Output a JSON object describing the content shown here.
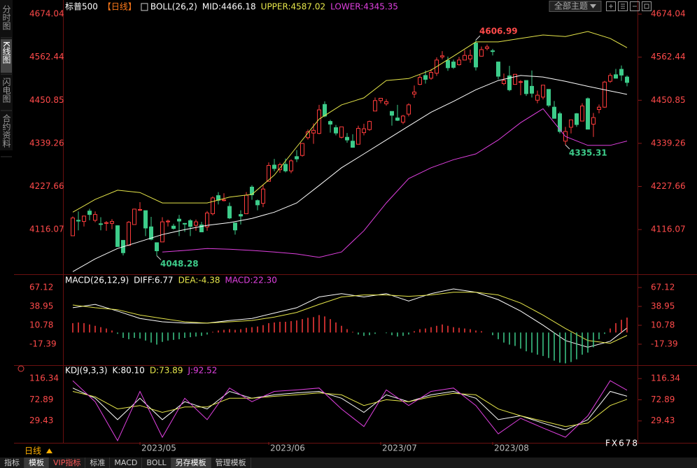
{
  "ui": {
    "sidebar_tabs": [
      "分时图",
      "K线图",
      "闪电图",
      "合约资料"
    ],
    "active_tab": 1,
    "theme_dropdown": "全部主题",
    "period_button": "日线",
    "bottom_tabs": [
      "指标",
      "模板",
      "VIP指标",
      "标准",
      "MACD",
      "BOLL",
      "另存模板",
      "管理模板"
    ],
    "watermark": "FX678"
  },
  "chart_data": [
    {
      "type": "candlestick",
      "title": "标普500",
      "period": "【日线】",
      "indicator": "BOLL(26,2)",
      "up_color": "#ff3b3b",
      "down_color": "#3dcc8a",
      "xlim": [
        -1.5,
        100.5
      ],
      "ylim": [
        4004,
        4696
      ],
      "yticks": [
        4674.04,
        4562.44,
        4450.85,
        4339.26,
        4227.66,
        4116.07
      ],
      "candles": [
        [
          4100,
          4150,
          4099,
          4146
        ],
        [
          4140,
          4163,
          4114,
          4138
        ],
        [
          4137,
          4152,
          4124,
          4151
        ],
        [
          4164,
          4170,
          4140,
          4155
        ],
        [
          4140,
          4163,
          4135,
          4155
        ],
        [
          4131,
          4148,
          4114,
          4130
        ],
        [
          4132,
          4138,
          4113,
          4134
        ],
        [
          4132,
          4143,
          4117,
          4137
        ],
        [
          4126,
          4127,
          4071,
          4072
        ],
        [
          4088,
          4089,
          4049,
          4056
        ],
        [
          4075,
          4138,
          4075,
          4135
        ],
        [
          4129,
          4170,
          4128,
          4169
        ],
        [
          4166,
          4187,
          4164,
          4168
        ],
        [
          4165,
          4165,
          4099,
          4120
        ],
        [
          4123,
          4149,
          4088,
          4091
        ],
        [
          4082,
          4083,
          4048.28,
          4061
        ],
        [
          4084,
          4148,
          4084,
          4136
        ],
        [
          4136,
          4142,
          4124,
          4138
        ],
        [
          4125,
          4131,
          4116,
          4119
        ],
        [
          4143,
          4154,
          4099,
          4138
        ],
        [
          4132,
          4133,
          4110,
          4131
        ],
        [
          4139,
          4143,
          4099,
          4124
        ],
        [
          4127,
          4142,
          4113,
          4136
        ],
        [
          4128,
          4136,
          4109,
          4110
        ],
        [
          4123,
          4164,
          4113,
          4159
        ],
        [
          4157,
          4202,
          4153,
          4198
        ],
        [
          4204,
          4213,
          4181,
          4192
        ],
        [
          4191,
          4210,
          4189,
          4193
        ],
        [
          4176,
          4186,
          4143,
          4146
        ],
        [
          4133,
          4133,
          4103,
          4115
        ],
        [
          4155,
          4166,
          4129,
          4151
        ],
        [
          4157,
          4213,
          4157,
          4205
        ],
        [
          4226,
          4231,
          4193,
          4206
        ],
        [
          4191,
          4194,
          4166,
          4180
        ],
        [
          4184,
          4232,
          4174,
          4221
        ],
        [
          4241,
          4290,
          4241,
          4282
        ],
        [
          4283,
          4299,
          4267,
          4274
        ],
        [
          4271,
          4289,
          4263,
          4284
        ],
        [
          4285,
          4300,
          4264,
          4268
        ],
        [
          4268,
          4298,
          4262,
          4294
        ],
        [
          4305,
          4322,
          4291,
          4299
        ],
        [
          4308,
          4340,
          4305,
          4339
        ],
        [
          4354,
          4375,
          4349,
          4369
        ],
        [
          4366,
          4391,
          4338,
          4373
        ],
        [
          4365,
          4439,
          4363,
          4426
        ],
        [
          4440,
          4448,
          4407,
          4410
        ],
        [
          4396,
          4400,
          4367,
          4389
        ],
        [
          4380,
          4387,
          4360,
          4366
        ],
        [
          4355,
          4382,
          4352,
          4382
        ],
        [
          4355,
          4366,
          4341,
          4348
        ],
        [
          4345,
          4363,
          4328,
          4329
        ],
        [
          4337,
          4385,
          4337,
          4378
        ],
        [
          4367,
          4390,
          4360,
          4377
        ],
        [
          4375,
          4398,
          4372,
          4396
        ],
        [
          4423,
          4458,
          4423,
          4450
        ],
        [
          4450,
          4456,
          4443,
          4456
        ],
        [
          4442,
          4454,
          4437,
          4447
        ],
        [
          4422,
          4422,
          4385,
          4412
        ],
        [
          4405,
          4439,
          4397,
          4399
        ],
        [
          4394,
          4413,
          4389,
          4410
        ],
        [
          4415,
          4443,
          4409,
          4439
        ],
        [
          4467,
          4489,
          4457,
          4472
        ],
        [
          4492,
          4517,
          4490,
          4510
        ],
        [
          4515,
          4528,
          4494,
          4505
        ],
        [
          4508,
          4532,
          4504,
          4523
        ],
        [
          4521,
          4562,
          4514,
          4555
        ],
        [
          4563,
          4578,
          4557,
          4566
        ],
        [
          4554,
          4564,
          4527,
          4535
        ],
        [
          4550,
          4556,
          4532,
          4536
        ],
        [
          4543,
          4563,
          4541,
          4555
        ],
        [
          4555,
          4581,
          4554,
          4567
        ],
        [
          4558,
          4582,
          4548,
          4567
        ],
        [
          4599,
          4606.99,
          4528,
          4537
        ],
        [
          4565,
          4590,
          4564,
          4582
        ],
        [
          4585,
          4595,
          4580,
          4589
        ],
        [
          4579,
          4584,
          4567,
          4577
        ],
        [
          4550,
          4551,
          4505,
          4513
        ],
        [
          4494,
          4520,
          4490,
          4502
        ],
        [
          4514,
          4540,
          4474,
          4478
        ],
        [
          4492,
          4519,
          4491,
          4518
        ],
        [
          4499,
          4503,
          4464,
          4499
        ],
        [
          4502,
          4502,
          4462,
          4468
        ],
        [
          4487,
          4528,
          4458,
          4469
        ],
        [
          4451,
          4476,
          4443,
          4464
        ],
        [
          4459,
          4490,
          4453,
          4490
        ],
        [
          4479,
          4479,
          4433,
          4438
        ],
        [
          4433,
          4449,
          4404,
          4404
        ],
        [
          4416,
          4421,
          4365,
          4370
        ],
        [
          4345,
          4382,
          4335.31,
          4370
        ],
        [
          4381,
          4401,
          4365,
          4400
        ],
        [
          4416,
          4418,
          4382,
          4388
        ],
        [
          4397,
          4443,
          4397,
          4436
        ],
        [
          4455,
          4458,
          4376,
          4376
        ],
        [
          4389,
          4418,
          4356,
          4406
        ],
        [
          4427,
          4440,
          4417,
          4433
        ],
        [
          4433,
          4501,
          4431,
          4498
        ],
        [
          4500,
          4521,
          4496,
          4515
        ],
        [
          4517,
          4532,
          4507,
          4508
        ],
        [
          4531,
          4541,
          4501,
          4516
        ],
        [
          4511,
          4515,
          4487,
          4497
        ]
      ],
      "series": [
        {
          "name": "MID:4466.18",
          "type": "line",
          "color": "#ffffff",
          "x": [
            0,
            4,
            8,
            12,
            16,
            20,
            24,
            28,
            32,
            36,
            40,
            44,
            48,
            52,
            56,
            60,
            64,
            68,
            72,
            76,
            80,
            84,
            88,
            92,
            96,
            99
          ],
          "values": [
            4007,
            4040,
            4067,
            4085,
            4103,
            4116,
            4127,
            4134,
            4145,
            4161,
            4185,
            4230,
            4276,
            4312,
            4348,
            4384,
            4420,
            4448,
            4478,
            4502,
            4515,
            4511,
            4500,
            4487,
            4475,
            4466.18
          ]
        },
        {
          "name": "UPPER:4587.02",
          "type": "line",
          "color": "#e6e64a",
          "x": [
            0,
            4,
            8,
            12,
            16,
            20,
            24,
            28,
            32,
            36,
            40,
            44,
            48,
            52,
            56,
            60,
            64,
            68,
            72,
            76,
            80,
            84,
            88,
            92,
            96,
            99
          ],
          "values": [
            4161,
            4194,
            4218,
            4212,
            4185,
            4185,
            4185,
            4200,
            4207,
            4257,
            4330,
            4402,
            4439,
            4457,
            4502,
            4507,
            4529,
            4565,
            4602,
            4602,
            4611,
            4620,
            4616,
            4629,
            4611,
            4587.02
          ]
        },
        {
          "name": "LOWER:4345.35",
          "type": "line",
          "color": "#e040e0",
          "x": [
            16,
            20,
            24,
            28,
            32,
            36,
            40,
            44,
            48,
            52,
            56,
            60,
            64,
            68,
            72,
            76,
            80,
            84,
            88,
            92,
            96,
            99
          ],
          "values": [
            4058,
            4062,
            4067,
            4065,
            4062,
            4058,
            4053,
            4044,
            4058,
            4113,
            4185,
            4248,
            4276,
            4297,
            4312,
            4348,
            4393,
            4429,
            4357,
            4334,
            4334,
            4345.35
          ]
        }
      ]
    },
    {
      "type": "indicator",
      "title": "MACD(26,12,9)",
      "xlim": [
        -1.5,
        100.5
      ],
      "ylim": [
        -46.6,
        83.8
      ],
      "yticks": [
        67.12,
        38.95,
        10.78,
        -17.39
      ],
      "series": [
        {
          "name": "DIFF:6.77",
          "type": "line",
          "color": "#ffffff",
          "x": [
            0,
            4,
            8,
            12,
            16,
            20,
            24,
            28,
            32,
            36,
            40,
            44,
            48,
            52,
            56,
            60,
            64,
            68,
            72,
            76,
            80,
            84,
            88,
            92,
            96,
            99
          ],
          "values": [
            37,
            42,
            32,
            21,
            16,
            14,
            14,
            18,
            21,
            29,
            37,
            53,
            58,
            53,
            58,
            47,
            58,
            65,
            60,
            49,
            32,
            11,
            -12,
            -22,
            -13,
            6.77
          ]
        },
        {
          "name": "DEA:-4.38",
          "type": "line",
          "color": "#e6e64a",
          "x": [
            0,
            4,
            8,
            12,
            16,
            20,
            24,
            28,
            32,
            36,
            40,
            44,
            48,
            52,
            56,
            60,
            64,
            68,
            72,
            76,
            80,
            84,
            88,
            92,
            96,
            99
          ],
          "values": [
            41,
            37,
            34,
            26,
            21,
            16,
            14,
            16,
            18,
            23,
            30,
            42,
            53,
            56,
            56,
            54,
            56,
            60,
            60,
            56,
            44,
            26,
            6,
            -12,
            -16,
            -4.38
          ]
        },
        {
          "name": "MACD:22.30",
          "type": "bar",
          "color": "#ff3b3b",
          "negative_color": "#3dcc8a",
          "label_color": "#e040e0",
          "values": [
            14,
            15,
            14,
            12,
            10,
            8,
            6,
            3,
            -2,
            -8,
            -10,
            -8,
            -9,
            -12,
            -15,
            -18,
            -14,
            -12,
            -11,
            -10,
            -8,
            -7,
            -6,
            -5,
            -3,
            1,
            3,
            4,
            5,
            4,
            5,
            7,
            8,
            9,
            11,
            14,
            15,
            16,
            16,
            17,
            18,
            20,
            22,
            23,
            26,
            24,
            20,
            15,
            10,
            5,
            1,
            -3,
            -5,
            -4,
            -2,
            0,
            -1,
            -4,
            -6,
            -5,
            -3,
            2,
            5,
            6,
            8,
            10,
            12,
            10,
            8,
            7,
            6,
            5,
            3,
            2,
            0,
            -4,
            -10,
            -15,
            -18,
            -20,
            -24,
            -28,
            -30,
            -33,
            -35,
            -38,
            -42,
            -45,
            -46,
            -44,
            -40,
            -33,
            -30,
            -22,
            -10,
            -2,
            6,
            14,
            19,
            22.3
          ]
        }
      ]
    },
    {
      "type": "indicator",
      "title": "KDJ(9,3,3)",
      "xlim": [
        -1.5,
        100.5
      ],
      "ylim": [
        -14,
        141
      ],
      "yticks": [
        116.34,
        72.89,
        29.43
      ],
      "xticks": [
        {
          "value": 12,
          "label": "2023/05"
        },
        {
          "value": 35,
          "label": "2023/06"
        },
        {
          "value": 55,
          "label": "2023/07"
        },
        {
          "value": 75,
          "label": "2023/08"
        }
      ],
      "series": [
        {
          "name": "K:80.10",
          "type": "line",
          "color": "#ffffff",
          "x": [
            0,
            4,
            8,
            12,
            16,
            20,
            24,
            28,
            32,
            36,
            40,
            44,
            48,
            52,
            56,
            60,
            64,
            68,
            72,
            76,
            80,
            84,
            88,
            92,
            96,
            99
          ],
          "values": [
            97,
            76,
            32,
            76,
            32,
            69,
            54,
            90,
            76,
            83,
            87,
            90,
            76,
            47,
            83,
            69,
            83,
            90,
            76,
            32,
            40,
            25,
            11,
            32,
            90,
            80.1
          ]
        },
        {
          "name": "D:73.89",
          "type": "line",
          "color": "#e6e64a",
          "x": [
            0,
            4,
            8,
            12,
            16,
            20,
            24,
            28,
            32,
            36,
            40,
            44,
            48,
            52,
            56,
            60,
            64,
            68,
            72,
            76,
            80,
            84,
            88,
            92,
            96,
            99
          ],
          "values": [
            90,
            79,
            54,
            61,
            47,
            58,
            58,
            76,
            76,
            80,
            83,
            87,
            83,
            61,
            73,
            69,
            79,
            86,
            83,
            54,
            40,
            29,
            18,
            25,
            61,
            73.89
          ]
        },
        {
          "name": "J:92.52",
          "type": "line",
          "color": "#e040e0",
          "x": [
            0,
            4,
            8,
            12,
            16,
            20,
            24,
            28,
            32,
            36,
            40,
            44,
            48,
            52,
            56,
            60,
            64,
            68,
            72,
            76,
            80,
            84,
            88,
            92,
            96,
            99
          ],
          "values": [
            112,
            69,
            -11,
            90,
            -4,
            76,
            32,
            97,
            69,
            90,
            93,
            97,
            54,
            18,
            93,
            61,
            90,
            97,
            61,
            3,
            35,
            15,
            -4,
            40,
            112,
            92.52
          ]
        }
      ]
    }
  ]
}
